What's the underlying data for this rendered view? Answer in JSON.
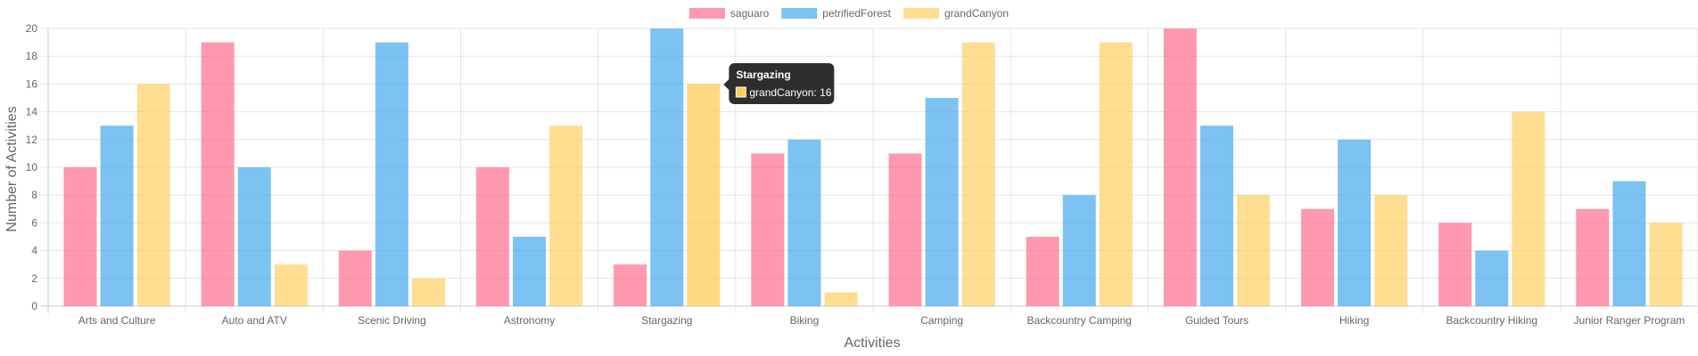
{
  "chart_data": {
    "type": "bar",
    "categories": [
      "Arts and Culture",
      "Auto and ATV",
      "Scenic Driving",
      "Astronomy",
      "Stargazing",
      "Biking",
      "Camping",
      "Backcountry Camping",
      "Guided Tours",
      "Hiking",
      "Backcountry Hiking",
      "Junior Ranger Program"
    ],
    "series": [
      {
        "name": "saguaro",
        "color": "#ff6384",
        "values": [
          10,
          19,
          4,
          10,
          3,
          11,
          11,
          5,
          20,
          7,
          6,
          7
        ]
      },
      {
        "name": "petrifiedForest",
        "color": "#36a2eb",
        "values": [
          13,
          10,
          19,
          5,
          20,
          12,
          15,
          8,
          13,
          12,
          4,
          9
        ]
      },
      {
        "name": "grandCanyon",
        "color": "#ffcd56",
        "values": [
          16,
          3,
          2,
          13,
          16,
          1,
          19,
          19,
          8,
          8,
          14,
          6
        ]
      }
    ],
    "xlabel": "Activities",
    "ylabel": "Number of Activities",
    "ylim": [
      0,
      20
    ],
    "yticks": [
      0,
      2,
      4,
      6,
      8,
      10,
      12,
      14,
      16,
      18,
      20
    ],
    "grid": true,
    "legend_position": "top",
    "tooltip": {
      "title": "Stargazing",
      "label": "grandCanyon: 16",
      "color": "#ffcd56"
    },
    "highlighted": {
      "category": "Stargazing",
      "series": "grandCanyon"
    }
  }
}
